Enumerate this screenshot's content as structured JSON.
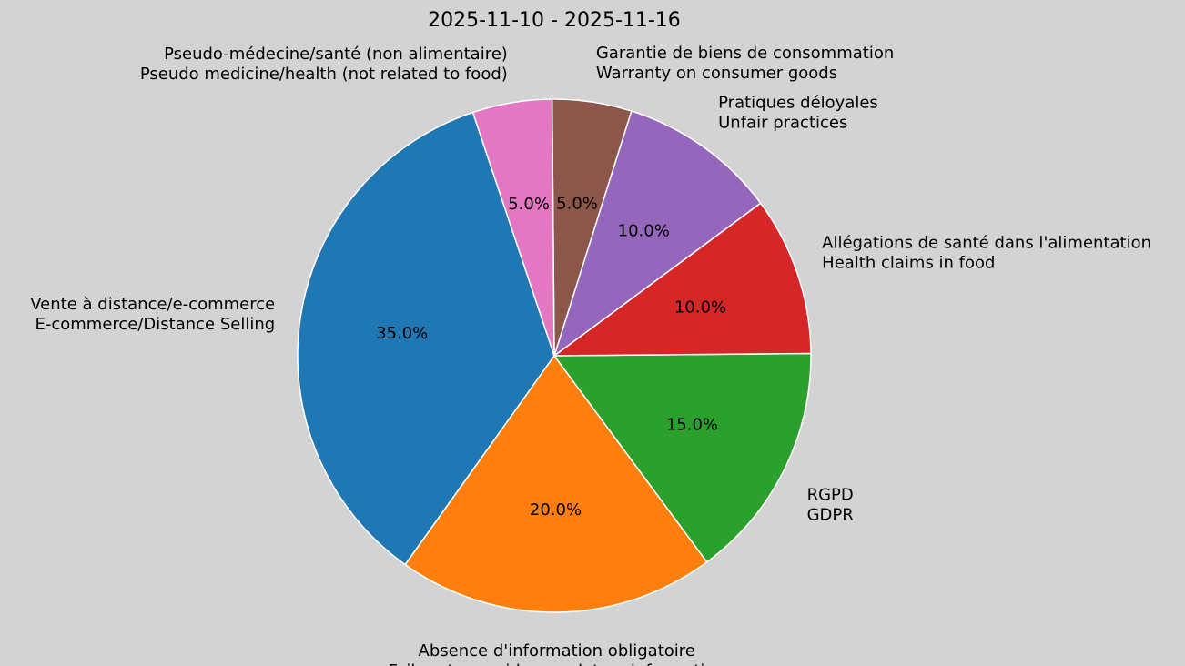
{
  "chart_data": {
    "type": "pie",
    "title": "2025-11-10 - 2025-11-16",
    "slices": [
      {
        "label_fr": "Vente à distance/e-commerce",
        "label_en": "E-commerce/Distance Selling",
        "value": 35.0,
        "pct_label": "35.0%",
        "color": "#1f77b4"
      },
      {
        "label_fr": "Absence d'information obligatoire",
        "label_en": "Failure to provide mandatory information",
        "value": 20.0,
        "pct_label": "20.0%",
        "color": "#ff7f0e"
      },
      {
        "label_fr": "RGPD",
        "label_en": "GDPR",
        "value": 15.0,
        "pct_label": "15.0%",
        "color": "#2ca02c"
      },
      {
        "label_fr": "Allégations de santé dans l'alimentation",
        "label_en": "Health claims in food",
        "value": 10.0,
        "pct_label": "10.0%",
        "color": "#d62728"
      },
      {
        "label_fr": "Pratiques déloyales",
        "label_en": "Unfair practices",
        "value": 10.0,
        "pct_label": "10.0%",
        "color": "#9467bd"
      },
      {
        "label_fr": "Garantie de biens de consommation",
        "label_en": "Warranty on consumer goods",
        "value": 5.0,
        "pct_label": "5.0%",
        "color": "#8c564b"
      },
      {
        "label_fr": "Pseudo-médecine/santé (non alimentaire)",
        "label_en": "Pseudo medicine/health (not related to food)",
        "value": 5.0,
        "pct_label": "5.0%",
        "color": "#e377c2"
      }
    ],
    "background": "#d3d3d3",
    "edge_color": "#ffffff"
  }
}
